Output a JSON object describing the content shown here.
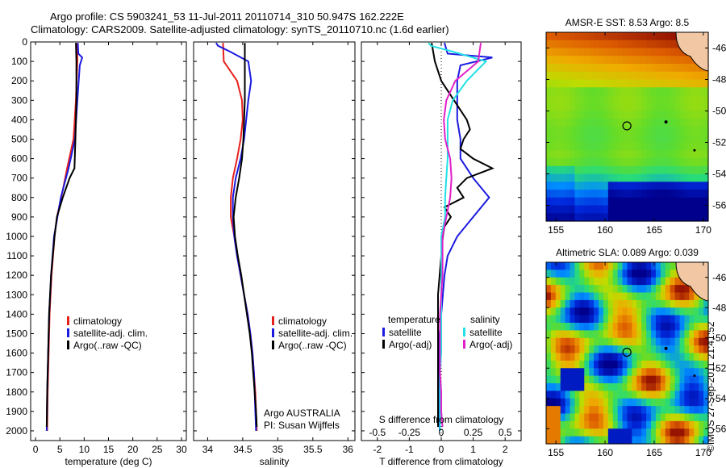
{
  "header": {
    "title_line1": "Argo profile: CS 5903241_53 11-Jul-2011 20110714_310 50.947S 162.222E",
    "title_line2": "Climatology: CARS2009. Satellite-adjusted climatology: synTS_20110710.nc (1.6d earlier)"
  },
  "stamp": "©IMOS 27-Sep-2011 21:41:52",
  "colors": {
    "climatology": "#e8201c",
    "satellite": "#1a1ae0",
    "argo": "#000000",
    "satellite_salinity": "#22e0e6",
    "argo_salinity": "#e020c8"
  },
  "chart_data": [
    {
      "type": "line",
      "id": "temperature",
      "xlabel": "temperature (deg C)",
      "ylabel": "",
      "xlim": [
        -1,
        31
      ],
      "ylim": [
        2050,
        0
      ],
      "xticks": [
        0,
        5,
        10,
        15,
        20,
        25,
        30
      ],
      "yticks": [
        0,
        100,
        200,
        300,
        400,
        500,
        600,
        700,
        800,
        900,
        1000,
        1100,
        1200,
        1300,
        1400,
        1500,
        1600,
        1700,
        1800,
        1900,
        2000
      ],
      "legend": [
        "climatology",
        "satellite-adj. clim.",
        "Argo(..raw -QC)"
      ],
      "series": [
        {
          "name": "climatology",
          "color": "#e8201c",
          "depth": [
            5,
            100,
            300,
            500,
            650,
            800,
            900,
            1000,
            1200,
            1400,
            1600,
            1800,
            2000
          ],
          "values": [
            8.6,
            8.6,
            8.3,
            7.8,
            6.5,
            5.3,
            4.4,
            3.9,
            3.3,
            2.9,
            2.7,
            2.5,
            2.4
          ]
        },
        {
          "name": "satellite-adj. clim.",
          "color": "#1a1ae0",
          "depth": [
            5,
            60,
            80,
            120,
            300,
            500,
            650,
            800,
            900,
            1000,
            1200,
            1400,
            1600,
            1800,
            2000
          ],
          "values": [
            8.7,
            8.8,
            9.6,
            9.1,
            8.6,
            8.1,
            6.8,
            5.2,
            4.5,
            3.8,
            3.2,
            2.8,
            2.6,
            2.4,
            2.3
          ]
        },
        {
          "name": "Argo(..raw -QC)",
          "color": "#000000",
          "depth": [
            5,
            100,
            200,
            300,
            500,
            650,
            700,
            800,
            900,
            1000,
            1200,
            1400,
            1600,
            1800,
            1980
          ],
          "values": [
            8.3,
            8.4,
            8.4,
            8.4,
            8.2,
            8.0,
            7.0,
            5.6,
            4.4,
            3.9,
            3.2,
            2.8,
            2.6,
            2.4,
            2.3
          ]
        }
      ]
    },
    {
      "type": "line",
      "id": "salinity",
      "xlabel": "salinity",
      "ylabel": "",
      "xlim": [
        33.8,
        36.1
      ],
      "ylim": [
        2050,
        0
      ],
      "xticks": [
        34,
        34.5,
        35,
        35.5,
        36
      ],
      "legend": [
        "climatology",
        "satellite-adj. clim.",
        "Argo(..raw -QC)"
      ],
      "annotation": [
        "Argo AUSTRALIA",
        "PI: Susan Wijffels"
      ],
      "series": [
        {
          "name": "climatology",
          "color": "#e8201c",
          "depth": [
            5,
            100,
            200,
            300,
            400,
            500,
            600,
            700,
            800,
            900,
            1000,
            1100,
            1200,
            1300,
            1400,
            1500,
            1600,
            1700,
            1800,
            1900,
            2000
          ],
          "values": [
            34.22,
            34.23,
            34.42,
            34.49,
            34.5,
            34.47,
            34.42,
            34.36,
            34.33,
            34.33,
            34.38,
            34.42,
            34.47,
            34.52,
            34.57,
            34.61,
            34.64,
            34.66,
            34.68,
            34.69,
            34.7
          ]
        },
        {
          "name": "satellite-adj. clim.",
          "color": "#1a1ae0",
          "depth": [
            5,
            20,
            50,
            100,
            200,
            300,
            400,
            500,
            600,
            700,
            800,
            900,
            1000,
            1100,
            1200,
            1300,
            1400,
            1500,
            1600,
            1700,
            1800,
            1900,
            2000
          ],
          "values": [
            34.12,
            34.15,
            34.32,
            34.58,
            34.62,
            34.58,
            34.55,
            34.52,
            34.47,
            34.4,
            34.36,
            34.36,
            34.38,
            34.42,
            34.47,
            34.52,
            34.57,
            34.61,
            34.64,
            34.66,
            34.67,
            34.68,
            34.69
          ]
        },
        {
          "name": "Argo(..raw -QC)",
          "color": "#000000",
          "depth": [
            5,
            100,
            200,
            300,
            400,
            500,
            600,
            700,
            800,
            900,
            1000,
            1100,
            1200,
            1300,
            1400,
            1500,
            1600,
            1700,
            1800,
            1900,
            1980
          ],
          "values": [
            34.53,
            34.53,
            34.53,
            34.53,
            34.52,
            34.51,
            34.49,
            34.45,
            34.4,
            34.37,
            34.39,
            34.43,
            34.48,
            34.52,
            34.56,
            34.6,
            34.63,
            34.65,
            34.67,
            34.69,
            34.7
          ]
        }
      ]
    },
    {
      "type": "line",
      "id": "difference",
      "xlabel": "T difference from climatology",
      "xlabel_top": "S difference from climatology",
      "xlim": [
        -2.5,
        2.5
      ],
      "ylim": [
        2050,
        0
      ],
      "xticks": [
        -2,
        -1,
        0,
        1,
        2
      ],
      "xticks_s": [
        "-0.5",
        "-0.25",
        "0",
        "0.25",
        "0.5"
      ],
      "legend_titles": [
        "temperature",
        "salinity"
      ],
      "legend": [
        "satellite",
        "Argo(-adj)",
        "satellite",
        "Argo(-adj)"
      ],
      "series": [
        {
          "name": "satellite",
          "group": "temperature",
          "color": "#1a1ae0",
          "depth": [
            5,
            60,
            80,
            120,
            200,
            300,
            400,
            500,
            600,
            650,
            700,
            800,
            900,
            1000,
            1100,
            1200,
            1300,
            1400,
            1500,
            1600,
            1700,
            1800,
            1900,
            2000
          ],
          "values": [
            0.1,
            0.2,
            1.6,
            0.6,
            0.5,
            0.5,
            0.5,
            0.6,
            0.6,
            0.8,
            1.0,
            1.5,
            1.0,
            0.5,
            0.2,
            0.1,
            0.05,
            0.0,
            -0.05,
            -0.05,
            -0.05,
            -0.05,
            -0.05,
            -0.05
          ]
        },
        {
          "name": "Argo(-adj)",
          "group": "temperature",
          "color": "#000000",
          "depth": [
            5,
            100,
            200,
            300,
            400,
            450,
            500,
            550,
            600,
            650,
            700,
            750,
            800,
            850,
            900,
            950,
            1000,
            1100,
            1200,
            1300,
            1400,
            1500,
            1600,
            1700,
            1800,
            1900,
            1980
          ],
          "values": [
            -0.3,
            -0.2,
            0.0,
            0.4,
            0.8,
            0.9,
            0.7,
            0.6,
            1.0,
            1.6,
            0.8,
            0.5,
            0.7,
            0.1,
            0.3,
            0.1,
            0.05,
            0.0,
            -0.05,
            -0.1,
            -0.1,
            -0.1,
            -0.1,
            -0.1,
            -0.1,
            -0.1,
            -0.1
          ]
        },
        {
          "name": "satellite",
          "group": "salinity",
          "color": "#22e0e6",
          "depth": [
            5,
            20,
            50,
            100,
            200,
            300,
            400,
            500,
            600,
            700,
            800,
            900,
            1000,
            1100,
            1200,
            1300,
            1400,
            1500,
            1600,
            1700,
            1800,
            1900,
            2000
          ],
          "values": [
            -0.1,
            -0.08,
            0.09,
            0.35,
            0.2,
            0.09,
            0.05,
            0.05,
            0.05,
            0.04,
            0.03,
            0.03,
            0.0,
            0.0,
            0.0,
            0.0,
            0.0,
            0.0,
            0.0,
            -0.01,
            -0.01,
            -0.01,
            -0.01
          ]
        },
        {
          "name": "Argo(-adj)",
          "group": "salinity",
          "color": "#e020c8",
          "depth": [
            5,
            50,
            100,
            200,
            300,
            400,
            500,
            600,
            700,
            800,
            900,
            1000,
            1100,
            1200,
            1300,
            1400,
            1500,
            1600,
            1700,
            1800,
            1900,
            1980
          ],
          "values": [
            0.31,
            0.3,
            0.29,
            0.11,
            0.04,
            0.02,
            0.03,
            0.07,
            0.08,
            0.07,
            0.04,
            0.01,
            0.01,
            0.01,
            0.0,
            -0.01,
            -0.01,
            -0.01,
            -0.01,
            0.0,
            0.0,
            0.01
          ]
        }
      ]
    },
    {
      "type": "heatmap",
      "id": "sst_map",
      "title": "AMSR-E SST: 8.53 Argo: 8.5",
      "xlim": [
        154,
        170.5
      ],
      "ylim": [
        -57,
        -45
      ],
      "xticks": [
        155,
        160,
        165,
        170
      ],
      "yticks": [
        -46,
        -48,
        -50,
        -52,
        -54,
        -56
      ]
    },
    {
      "type": "heatmap",
      "id": "sla_map",
      "title": "Altimetric SLA: 0.089 Argo: 0.039",
      "xlim": [
        154,
        170.5
      ],
      "ylim": [
        -57,
        -45
      ],
      "xticks": [
        155,
        160,
        165,
        170
      ],
      "yticks": [
        -46,
        -48,
        -50,
        -52,
        -54,
        -56
      ]
    }
  ]
}
